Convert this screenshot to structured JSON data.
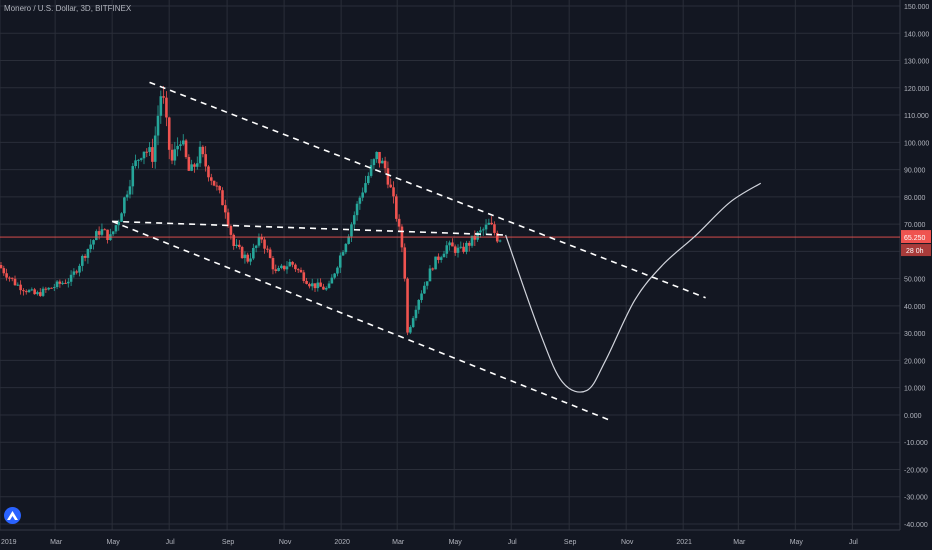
{
  "header": {
    "title": "Monero / U.S. Dollar, 3D, BITFINEX"
  },
  "price_label": {
    "price": "65.250",
    "countdown": "28 0h"
  },
  "colors": {
    "background": "#131722",
    "grid": "#2a2e39",
    "up": "#26a69a",
    "down": "#ef5350",
    "price_line": "#ef5350",
    "text": "#b2b5be",
    "drawing": "#ffffff"
  },
  "chart_data": {
    "type": "candlestick",
    "title": "Monero / U.S. Dollar, 3D, BITFINEX",
    "ylim": [
      -40,
      150
    ],
    "y_ticks": [
      "150.000",
      "140.000",
      "130.000",
      "120.000",
      "110.000",
      "100.000",
      "90.000",
      "80.000",
      "70.000",
      "60.000",
      "50.000",
      "40.000",
      "30.000",
      "20.000",
      "10.000",
      "0.000",
      "-10.000",
      "-20.000",
      "-30.000",
      "-40.000"
    ],
    "x_ticks": [
      "2019",
      "Mar",
      "May",
      "Jul",
      "Sep",
      "Nov",
      "2020",
      "Mar",
      "May",
      "Jul",
      "Sep",
      "Nov",
      "2021",
      "Mar",
      "May",
      "Jul"
    ],
    "x_tick_dates": [
      "2019-01-01",
      "2019-03-01",
      "2019-05-01",
      "2019-07-01",
      "2019-09-01",
      "2019-11-01",
      "2020-01-01",
      "2020-03-01",
      "2020-05-01",
      "2020-07-01",
      "2020-09-01",
      "2020-11-01",
      "2021-01-01",
      "2021-03-01",
      "2021-05-01",
      "2021-07-01"
    ],
    "last_price": 65.25,
    "price_path": [
      [
        "2019-01-01",
        55
      ],
      [
        "2019-01-20",
        48
      ],
      [
        "2019-02-10",
        44
      ],
      [
        "2019-03-01",
        47
      ],
      [
        "2019-03-20",
        50
      ],
      [
        "2019-04-05",
        60
      ],
      [
        "2019-04-20",
        68
      ],
      [
        "2019-05-01",
        65
      ],
      [
        "2019-05-10",
        72
      ],
      [
        "2019-05-25",
        90
      ],
      [
        "2019-06-05",
        98
      ],
      [
        "2019-06-15",
        95
      ],
      [
        "2019-06-25",
        120
      ],
      [
        "2019-07-05",
        92
      ],
      [
        "2019-07-15",
        102
      ],
      [
        "2019-07-25",
        88
      ],
      [
        "2019-08-05",
        96
      ],
      [
        "2019-08-20",
        85
      ],
      [
        "2019-09-01",
        76
      ],
      [
        "2019-09-10",
        62
      ],
      [
        "2019-09-25",
        57
      ],
      [
        "2019-10-10",
        65
      ],
      [
        "2019-10-25",
        52
      ],
      [
        "2019-11-10",
        56
      ],
      [
        "2019-12-01",
        48
      ],
      [
        "2019-12-20",
        46
      ],
      [
        "2020-01-10",
        66
      ],
      [
        "2020-01-25",
        82
      ],
      [
        "2020-02-10",
        95
      ],
      [
        "2020-02-20",
        90
      ],
      [
        "2020-03-01",
        75
      ],
      [
        "2020-03-10",
        58
      ],
      [
        "2020-03-14",
        30
      ],
      [
        "2020-03-25",
        42
      ],
      [
        "2020-04-10",
        55
      ],
      [
        "2020-04-25",
        62
      ],
      [
        "2020-05-10",
        60
      ],
      [
        "2020-05-25",
        65
      ],
      [
        "2020-06-10",
        70
      ],
      [
        "2020-06-18",
        65
      ]
    ],
    "drawings": {
      "channel_upper": [
        [
          "2019-06-10",
          122
        ],
        [
          "2021-01-25",
          43
        ]
      ],
      "channel_middle": [
        [
          "2019-05-01",
          71
        ],
        [
          "2020-06-25",
          66
        ]
      ],
      "channel_lower": [
        [
          "2019-05-01",
          71
        ],
        [
          "2020-10-15",
          -2
        ]
      ],
      "projection": [
        [
          "2020-06-25",
          66
        ],
        [
          "2020-08-01",
          30
        ],
        [
          "2020-08-25",
          12
        ],
        [
          "2020-09-20",
          9
        ],
        [
          "2020-10-10",
          20
        ],
        [
          "2020-11-10",
          42
        ],
        [
          "2020-12-10",
          55
        ],
        [
          "2021-01-15",
          66
        ],
        [
          "2021-02-20",
          78
        ],
        [
          "2021-03-25",
          85
        ]
      ]
    }
  }
}
